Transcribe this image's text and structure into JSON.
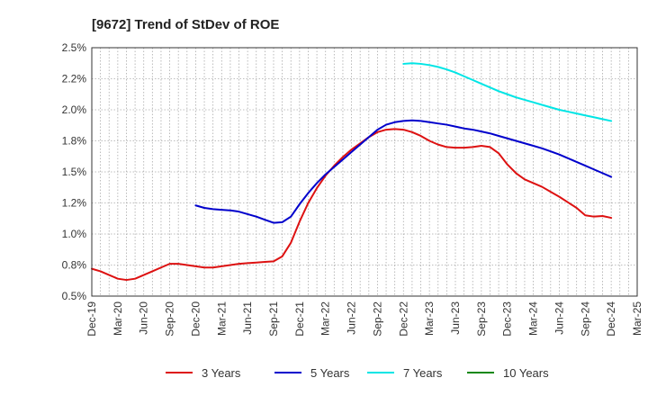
{
  "chart_data": {
    "type": "line",
    "title": "[9672]  Trend of StDev of ROE",
    "xlabel": "",
    "ylabel": "",
    "x_ticks": [
      "Dec-19",
      "Mar-20",
      "Jun-20",
      "Sep-20",
      "Dec-20",
      "Mar-21",
      "Jun-21",
      "Sep-21",
      "Dec-21",
      "Mar-22",
      "Jun-22",
      "Sep-22",
      "Dec-22",
      "Mar-23",
      "Jun-23",
      "Sep-23",
      "Dec-23",
      "Mar-24",
      "Jun-24",
      "Sep-24",
      "Dec-24",
      "Mar-25"
    ],
    "y_ticks": [
      "0.5%",
      "0.8%",
      "1.0%",
      "1.2%",
      "1.5%",
      "1.8%",
      "2.0%",
      "2.2%",
      "2.5%"
    ],
    "ylim": [
      0.5,
      2.5
    ],
    "grid": true,
    "legend_position": "bottom",
    "series": [
      {
        "name": "3 Years",
        "color": "#dd1111",
        "points": [
          [
            "Dec-19",
            0.72
          ],
          [
            "Jan-20",
            0.7
          ],
          [
            "Feb-20",
            0.67
          ],
          [
            "Mar-20",
            0.64
          ],
          [
            "Apr-20",
            0.63
          ],
          [
            "May-20",
            0.64
          ],
          [
            "Jun-20",
            0.67
          ],
          [
            "Jul-20",
            0.7
          ],
          [
            "Aug-20",
            0.73
          ],
          [
            "Sep-20",
            0.76
          ],
          [
            "Oct-20",
            0.76
          ],
          [
            "Nov-20",
            0.75
          ],
          [
            "Dec-20",
            0.74
          ],
          [
            "Jan-21",
            0.73
          ],
          [
            "Feb-21",
            0.73
          ],
          [
            "Mar-21",
            0.74
          ],
          [
            "Apr-21",
            0.75
          ],
          [
            "May-21",
            0.76
          ],
          [
            "Jun-21",
            0.765
          ],
          [
            "Jul-21",
            0.77
          ],
          [
            "Aug-21",
            0.775
          ],
          [
            "Sep-21",
            0.78
          ],
          [
            "Oct-21",
            0.82
          ],
          [
            "Nov-21",
            0.93
          ],
          [
            "Dec-21",
            1.1
          ],
          [
            "Jan-22",
            1.25
          ],
          [
            "Feb-22",
            1.37
          ],
          [
            "Mar-22",
            1.47
          ],
          [
            "Apr-22",
            1.55
          ],
          [
            "May-22",
            1.62
          ],
          [
            "Jun-22",
            1.68
          ],
          [
            "Jul-22",
            1.73
          ],
          [
            "Aug-22",
            1.78
          ],
          [
            "Sep-22",
            1.82
          ],
          [
            "Oct-22",
            1.84
          ],
          [
            "Nov-22",
            1.845
          ],
          [
            "Dec-22",
            1.84
          ],
          [
            "Jan-23",
            1.82
          ],
          [
            "Feb-23",
            1.79
          ],
          [
            "Mar-23",
            1.75
          ],
          [
            "Apr-23",
            1.72
          ],
          [
            "May-23",
            1.7
          ],
          [
            "Jun-23",
            1.695
          ],
          [
            "Jul-23",
            1.695
          ],
          [
            "Aug-23",
            1.7
          ],
          [
            "Sep-23",
            1.71
          ],
          [
            "Oct-23",
            1.7
          ],
          [
            "Nov-23",
            1.65
          ],
          [
            "Dec-23",
            1.56
          ],
          [
            "Jan-24",
            1.49
          ],
          [
            "Feb-24",
            1.44
          ],
          [
            "Mar-24",
            1.41
          ],
          [
            "Apr-24",
            1.38
          ],
          [
            "May-24",
            1.34
          ],
          [
            "Jun-24",
            1.3
          ],
          [
            "Jul-24",
            1.255
          ],
          [
            "Aug-24",
            1.21
          ],
          [
            "Sep-24",
            1.15
          ],
          [
            "Oct-24",
            1.14
          ],
          [
            "Nov-24",
            1.145
          ],
          [
            "Dec-24",
            1.13
          ]
        ]
      },
      {
        "name": "5 Years",
        "color": "#0000cc",
        "points": [
          [
            "Dec-20",
            1.23
          ],
          [
            "Jan-21",
            1.21
          ],
          [
            "Feb-21",
            1.2
          ],
          [
            "Mar-21",
            1.195
          ],
          [
            "Apr-21",
            1.19
          ],
          [
            "May-21",
            1.18
          ],
          [
            "Jun-21",
            1.16
          ],
          [
            "Jul-21",
            1.14
          ],
          [
            "Aug-21",
            1.115
          ],
          [
            "Sep-21",
            1.09
          ],
          [
            "Oct-21",
            1.095
          ],
          [
            "Nov-21",
            1.14
          ],
          [
            "Dec-21",
            1.24
          ],
          [
            "Jan-22",
            1.33
          ],
          [
            "Feb-22",
            1.41
          ],
          [
            "Mar-22",
            1.48
          ],
          [
            "Apr-22",
            1.54
          ],
          [
            "May-22",
            1.6
          ],
          [
            "Jun-22",
            1.66
          ],
          [
            "Jul-22",
            1.72
          ],
          [
            "Aug-22",
            1.78
          ],
          [
            "Sep-22",
            1.84
          ],
          [
            "Oct-22",
            1.88
          ],
          [
            "Nov-22",
            1.9
          ],
          [
            "Dec-22",
            1.91
          ],
          [
            "Jan-23",
            1.915
          ],
          [
            "Feb-23",
            1.91
          ],
          [
            "Mar-23",
            1.9
          ],
          [
            "Apr-23",
            1.89
          ],
          [
            "May-23",
            1.88
          ],
          [
            "Jun-23",
            1.865
          ],
          [
            "Jul-23",
            1.85
          ],
          [
            "Aug-23",
            1.84
          ],
          [
            "Sep-23",
            1.825
          ],
          [
            "Oct-23",
            1.81
          ],
          [
            "Nov-23",
            1.79
          ],
          [
            "Dec-23",
            1.77
          ],
          [
            "Jan-24",
            1.75
          ],
          [
            "Feb-24",
            1.73
          ],
          [
            "Mar-24",
            1.71
          ],
          [
            "Apr-24",
            1.69
          ],
          [
            "May-24",
            1.665
          ],
          [
            "Jun-24",
            1.64
          ],
          [
            "Jul-24",
            1.61
          ],
          [
            "Aug-24",
            1.58
          ],
          [
            "Sep-24",
            1.55
          ],
          [
            "Oct-24",
            1.52
          ],
          [
            "Nov-24",
            1.49
          ],
          [
            "Dec-24",
            1.46
          ]
        ]
      },
      {
        "name": "7 Years",
        "color": "#00e5e5",
        "points": [
          [
            "Dec-22",
            2.37
          ],
          [
            "Jan-23",
            2.375
          ],
          [
            "Feb-23",
            2.37
          ],
          [
            "Mar-23",
            2.36
          ],
          [
            "Apr-23",
            2.345
          ],
          [
            "May-23",
            2.325
          ],
          [
            "Jun-23",
            2.3
          ],
          [
            "Jul-23",
            2.27
          ],
          [
            "Aug-23",
            2.24
          ],
          [
            "Sep-23",
            2.21
          ],
          [
            "Oct-23",
            2.18
          ],
          [
            "Nov-23",
            2.15
          ],
          [
            "Dec-23",
            2.125
          ],
          [
            "Jan-24",
            2.1
          ],
          [
            "Feb-24",
            2.08
          ],
          [
            "Mar-24",
            2.06
          ],
          [
            "Apr-24",
            2.04
          ],
          [
            "May-24",
            2.02
          ],
          [
            "Jun-24",
            2.0
          ],
          [
            "Jul-24",
            1.985
          ],
          [
            "Aug-24",
            1.97
          ],
          [
            "Sep-24",
            1.955
          ],
          [
            "Oct-24",
            1.94
          ],
          [
            "Nov-24",
            1.925
          ],
          [
            "Dec-24",
            1.91
          ]
        ]
      },
      {
        "name": "10 Years",
        "color": "#118811",
        "points": []
      }
    ]
  }
}
